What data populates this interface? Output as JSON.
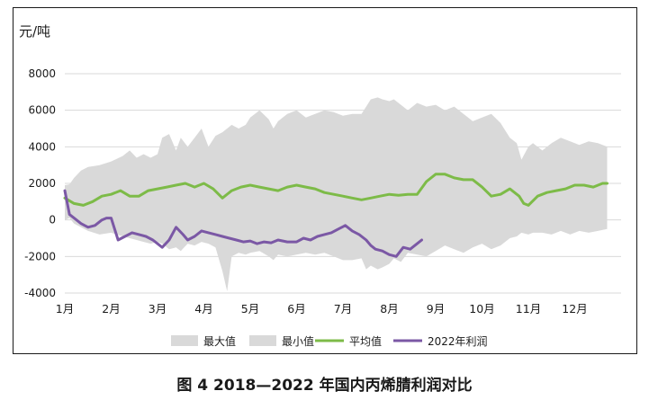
{
  "caption": "图 4  2018—2022 年国内丙烯腈利润对比",
  "chart_data": {
    "type": "area",
    "title": "",
    "ylabel": "元/吨",
    "xlabel": "",
    "ylim": [
      -4000,
      8000
    ],
    "yticks": [
      "8000",
      "6000",
      "4000",
      "2000",
      "0",
      "-2000",
      "-4000"
    ],
    "ytick_values": [
      8000,
      6000,
      4000,
      2000,
      0,
      -2000,
      -4000
    ],
    "xlim": [
      1,
      13
    ],
    "xticks": [
      "1月",
      "2月",
      "3月",
      "4月",
      "5月",
      "6月",
      "7月",
      "8月",
      "9月",
      "10月",
      "11月",
      "12月"
    ],
    "xtick_values": [
      1,
      2,
      3,
      4,
      5,
      6,
      7,
      8,
      9,
      10,
      11,
      12
    ],
    "grid": "horizontal",
    "legend_position": "bottom",
    "colors": {
      "band": "#d9d9d9",
      "avg": "#7dbb48",
      "profit2022": "#7b58a5",
      "grid": "#d9d9d9"
    },
    "band_x": [
      1.0,
      1.1,
      1.2,
      1.35,
      1.5,
      1.75,
      2.0,
      2.25,
      2.4,
      2.55,
      2.7,
      2.85,
      3.0,
      3.1,
      3.25,
      3.4,
      3.5,
      3.65,
      3.8,
      3.95,
      4.1,
      4.25,
      4.4,
      4.5,
      4.6,
      4.75,
      4.9,
      5.0,
      5.2,
      5.4,
      5.5,
      5.6,
      5.8,
      6.0,
      6.2,
      6.4,
      6.6,
      6.8,
      7.0,
      7.2,
      7.4,
      7.5,
      7.6,
      7.75,
      7.85,
      8.0,
      8.1,
      8.25,
      8.4,
      8.6,
      8.8,
      9.0,
      9.2,
      9.4,
      9.6,
      9.8,
      10.0,
      10.2,
      10.4,
      10.6,
      10.75,
      10.85,
      11.0,
      11.1,
      11.3,
      11.5,
      11.7,
      11.9,
      12.1,
      12.3,
      12.5,
      12.7
    ],
    "series": [
      {
        "name": "最大值",
        "values": [
          1900,
          1950,
          2300,
          2700,
          2900,
          3000,
          3200,
          3500,
          3800,
          3400,
          3600,
          3400,
          3600,
          4500,
          4700,
          3800,
          4500,
          4000,
          4500,
          5000,
          4000,
          4600,
          4800,
          5000,
          5200,
          5000,
          5200,
          5600,
          6000,
          5500,
          5000,
          5400,
          5800,
          6000,
          5600,
          5800,
          6000,
          5900,
          5700,
          5800,
          5800,
          6200,
          6600,
          6700,
          6600,
          6500,
          6600,
          6300,
          6000,
          6400,
          6200,
          6300,
          6000,
          6200,
          5800,
          5400,
          5600,
          5800,
          5300,
          4500,
          4200,
          3300,
          4000,
          4200,
          3800,
          4200,
          4500,
          4300,
          4100,
          4300,
          4200,
          4000
        ]
      },
      {
        "name": "最小值",
        "values": [
          0,
          100,
          -200,
          -400,
          -600,
          -800,
          -700,
          -900,
          -1000,
          -1100,
          -1200,
          -1300,
          -1200,
          -1300,
          -1600,
          -1500,
          -1700,
          -1300,
          -1400,
          -1200,
          -1300,
          -1500,
          -2800,
          -3900,
          -2000,
          -1800,
          -1900,
          -1800,
          -1700,
          -2000,
          -2200,
          -1900,
          -2000,
          -1900,
          -1800,
          -1900,
          -1800,
          -2000,
          -2200,
          -2200,
          -2100,
          -2700,
          -2500,
          -2700,
          -2600,
          -2400,
          -2100,
          -2300,
          -1800,
          -1900,
          -2000,
          -1700,
          -1400,
          -1600,
          -1800,
          -1500,
          -1300,
          -1600,
          -1400,
          -1000,
          -900,
          -700,
          -800,
          -700,
          -700,
          -800,
          -600,
          -800,
          -600,
          -700,
          -600,
          -500
        ]
      },
      {
        "name": "平均值",
        "x": [
          1.0,
          1.2,
          1.4,
          1.6,
          1.8,
          2.0,
          2.2,
          2.4,
          2.6,
          2.8,
          3.0,
          3.2,
          3.4,
          3.6,
          3.8,
          4.0,
          4.2,
          4.4,
          4.6,
          4.8,
          5.0,
          5.2,
          5.4,
          5.6,
          5.8,
          6.0,
          6.2,
          6.4,
          6.6,
          6.8,
          7.0,
          7.2,
          7.4,
          7.6,
          7.8,
          8.0,
          8.2,
          8.4,
          8.6,
          8.8,
          9.0,
          9.2,
          9.4,
          9.6,
          9.8,
          10.0,
          10.2,
          10.4,
          10.6,
          10.8,
          10.9,
          11.0,
          11.2,
          11.4,
          11.6,
          11.8,
          12.0,
          12.2,
          12.4,
          12.6,
          12.7
        ],
        "values": [
          1200,
          900,
          800,
          1000,
          1300,
          1400,
          1600,
          1300,
          1300,
          1600,
          1700,
          1800,
          1900,
          2000,
          1800,
          2000,
          1700,
          1200,
          1600,
          1800,
          1900,
          1800,
          1700,
          1600,
          1800,
          1900,
          1800,
          1700,
          1500,
          1400,
          1300,
          1200,
          1100,
          1200,
          1300,
          1400,
          1350,
          1400,
          1400,
          2100,
          2500,
          2500,
          2300,
          2200,
          2200,
          1800,
          1300,
          1400,
          1700,
          1300,
          900,
          800,
          1300,
          1500,
          1600,
          1700,
          1900,
          1900,
          1800,
          2000,
          2000
        ]
      },
      {
        "name": "2022年利润",
        "x": [
          1.0,
          1.1,
          1.2,
          1.35,
          1.5,
          1.65,
          1.8,
          1.9,
          2.0,
          2.15,
          2.3,
          2.45,
          2.6,
          2.75,
          2.9,
          3.0,
          3.1,
          3.25,
          3.4,
          3.55,
          3.65,
          3.8,
          3.95,
          4.1,
          4.25,
          4.4,
          4.55,
          4.7,
          4.85,
          5.0,
          5.15,
          5.3,
          5.45,
          5.6,
          5.8,
          6.0,
          6.15,
          6.3,
          6.45,
          6.6,
          6.75,
          6.9,
          7.05,
          7.2,
          7.35,
          7.5,
          7.6,
          7.7,
          7.85,
          8.0,
          8.15,
          8.3,
          8.45,
          8.6,
          8.7
        ],
        "values": [
          1600,
          300,
          100,
          -200,
          -400,
          -300,
          0,
          100,
          100,
          -1100,
          -900,
          -700,
          -800,
          -900,
          -1100,
          -1300,
          -1500,
          -1100,
          -400,
          -800,
          -1100,
          -900,
          -600,
          -700,
          -800,
          -900,
          -1000,
          -1100,
          -1200,
          -1150,
          -1300,
          -1200,
          -1250,
          -1100,
          -1200,
          -1200,
          -1000,
          -1100,
          -900,
          -800,
          -700,
          -500,
          -300,
          -600,
          -800,
          -1100,
          -1400,
          -1600,
          -1700,
          -1900,
          -2000,
          -1500,
          -1600,
          -1300,
          -1100
        ]
      }
    ]
  }
}
